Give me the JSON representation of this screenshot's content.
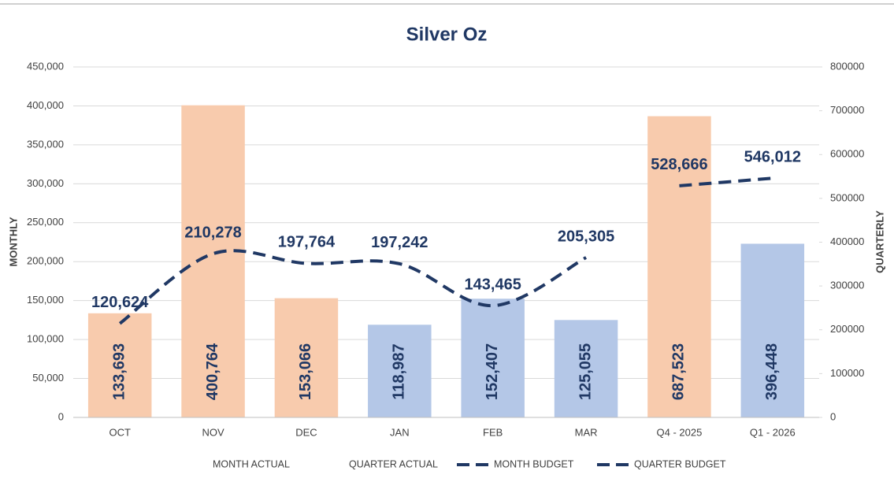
{
  "chart_data": {
    "type": "combo",
    "title": "Silver Oz",
    "y_label": "MONTHLY",
    "y2_label": "QUARTERLY",
    "categories": [
      "OCT",
      "NOV",
      "DEC",
      "JAN",
      "FEB",
      "MAR",
      "Q4 - 2025",
      "Q1 - 2026"
    ],
    "ylim": [
      0,
      450000
    ],
    "yticks": [
      0,
      {
        "value": 50000,
        "label": "50,000"
      },
      {
        "value": 100000,
        "label": "100,000"
      },
      {
        "value": 150000,
        "label": "150,000"
      },
      {
        "value": 200000,
        "label": "200,000"
      },
      {
        "value": 250000,
        "label": "250,000"
      },
      {
        "value": 300000,
        "label": "300,000"
      },
      {
        "value": 350000,
        "label": "350,000"
      },
      {
        "value": 400000,
        "label": "400,000"
      },
      {
        "value": 450000,
        "label": "450,000"
      }
    ],
    "y2lim": [
      0,
      800000
    ],
    "y2ticks": [
      0,
      100000,
      200000,
      300000,
      400000,
      500000,
      600000,
      700000,
      800000
    ],
    "grid": true,
    "legend": "bottom",
    "series": [
      {
        "name": "MONTH ACTUAL",
        "type": "bar",
        "axis": "y",
        "colors": [
          "#f8cbad",
          "#f8cbad",
          "#f8cbad",
          "#b4c7e7",
          "#b4c7e7",
          "#b4c7e7",
          null,
          null
        ],
        "values": [
          133693,
          400764,
          153066,
          118987,
          152407,
          125055,
          null,
          null
        ],
        "value_labels": [
          "133,693",
          "400,764",
          "153,066",
          "118,987",
          "152,407",
          "125,055",
          null,
          null
        ]
      },
      {
        "name": "QUARTER ACTUAL",
        "type": "bar",
        "axis": "y2",
        "colors": [
          null,
          null,
          null,
          null,
          null,
          null,
          "#f8cbad",
          "#b4c7e7"
        ],
        "values": [
          null,
          null,
          null,
          null,
          null,
          null,
          687523,
          396448
        ],
        "value_labels": [
          null,
          null,
          null,
          null,
          null,
          null,
          "687,523",
          "396,448"
        ]
      },
      {
        "name": "MONTH BUDGET",
        "type": "line",
        "axis": "y",
        "color": "#203864",
        "dashed": true,
        "smooth": true,
        "values": [
          120624,
          210278,
          197764,
          197242,
          143465,
          205305,
          null,
          null
        ],
        "value_labels": [
          "120,624",
          "210,278",
          "197,764",
          "197,242",
          "143,465",
          "205,305",
          null,
          null
        ]
      },
      {
        "name": "QUARTER BUDGET",
        "type": "line",
        "axis": "y2",
        "color": "#203864",
        "dashed": true,
        "smooth": true,
        "values": [
          null,
          null,
          null,
          null,
          null,
          null,
          528666,
          546012
        ],
        "value_labels": [
          null,
          null,
          null,
          null,
          null,
          null,
          "528,666",
          "546,012"
        ]
      }
    ]
  }
}
